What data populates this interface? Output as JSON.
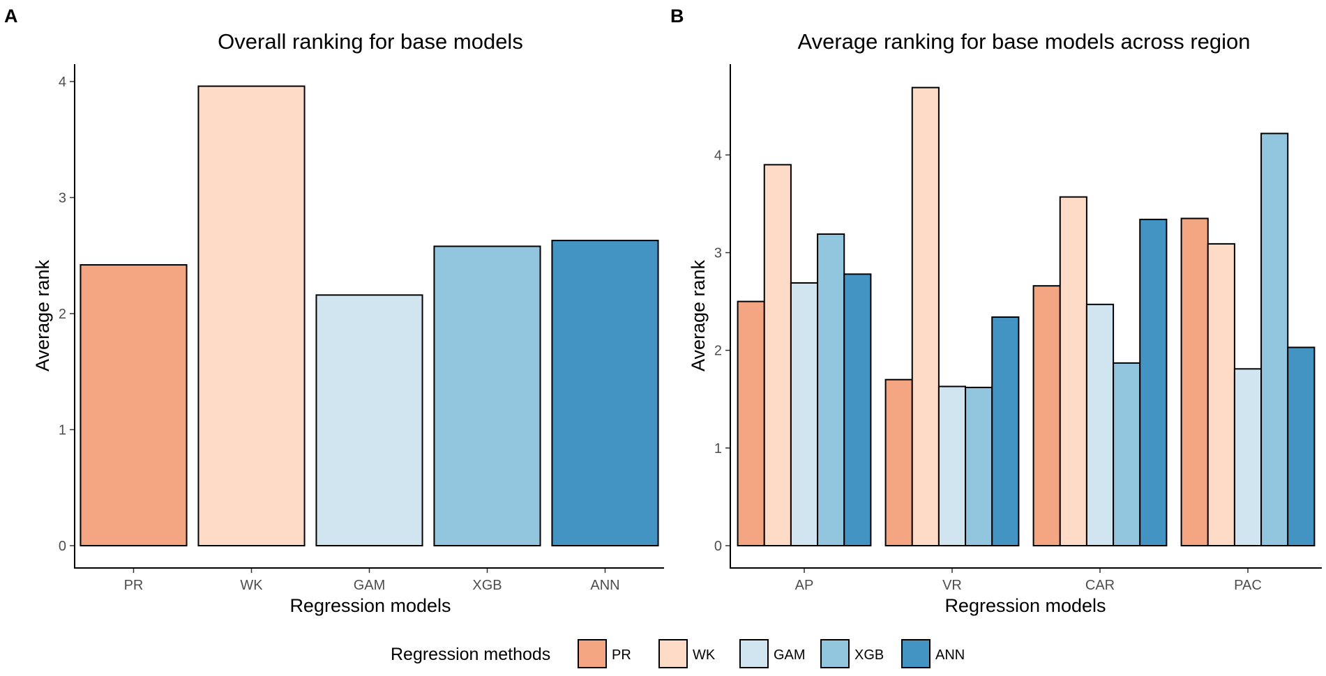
{
  "panels": {
    "a": {
      "letter": "A"
    },
    "b": {
      "letter": "B"
    }
  },
  "legend": {
    "title": "Regression methods",
    "items": [
      {
        "label": "PR",
        "color": "#f4a582"
      },
      {
        "label": "WK",
        "color": "#fddbc7"
      },
      {
        "label": "GAM",
        "color": "#d1e5f0"
      },
      {
        "label": "XGB",
        "color": "#92c5de"
      },
      {
        "label": "ANN",
        "color": "#4393c3"
      }
    ]
  },
  "chart_data": [
    {
      "type": "bar",
      "title": "Overall ranking for base models",
      "xlabel": "Regression models",
      "ylabel": "Average rank",
      "categories": [
        "PR",
        "WK",
        "GAM",
        "XGB",
        "ANN"
      ],
      "values": [
        2.42,
        3.96,
        2.16,
        2.58,
        2.63
      ],
      "ylim": [
        0,
        4.15
      ],
      "yticks": [
        0,
        1,
        2,
        3,
        4
      ],
      "grid": false,
      "legend": false
    },
    {
      "type": "bar",
      "title": "Average ranking for base models across region",
      "xlabel": "Regression models",
      "ylabel": "Average rank",
      "categories": [
        "AP",
        "VR",
        "CAR",
        "PAC"
      ],
      "series": [
        {
          "name": "PR",
          "values": [
            2.5,
            1.7,
            2.66,
            3.35
          ]
        },
        {
          "name": "WK",
          "values": [
            3.9,
            4.69,
            3.57,
            3.09
          ]
        },
        {
          "name": "GAM",
          "values": [
            2.69,
            1.63,
            2.47,
            1.81
          ]
        },
        {
          "name": "XGB",
          "values": [
            3.19,
            1.62,
            1.87,
            4.22
          ]
        },
        {
          "name": "ANN",
          "values": [
            2.78,
            2.34,
            3.34,
            2.03
          ]
        }
      ],
      "ylim": [
        0,
        4.93
      ],
      "yticks": [
        0,
        1,
        2,
        3,
        4
      ],
      "grid": false,
      "legend": "bottom"
    }
  ]
}
